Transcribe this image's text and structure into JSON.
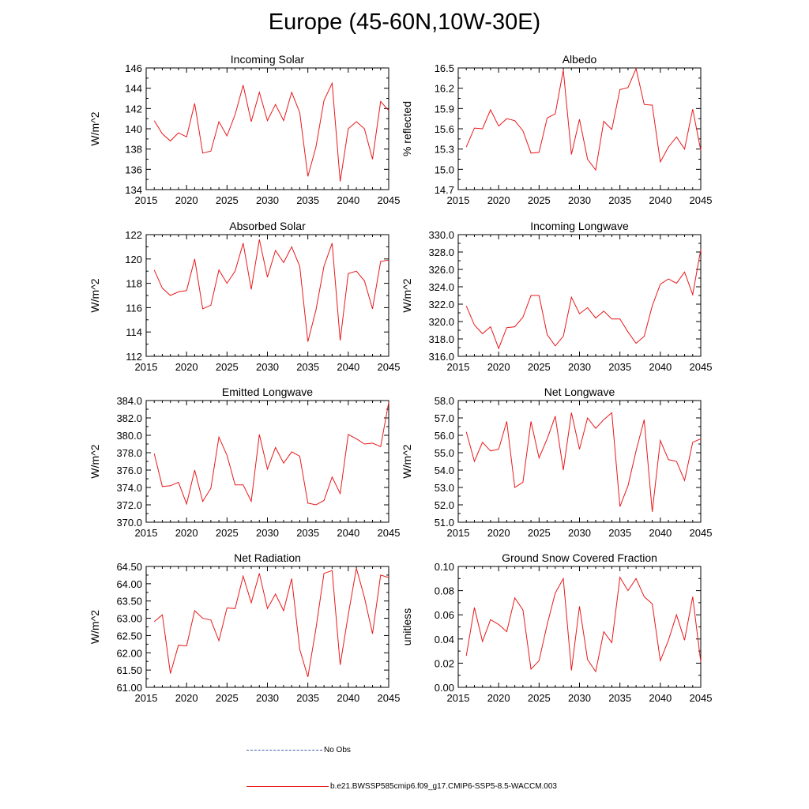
{
  "title": "Europe (45-60N,10W-30E)",
  "colors": {
    "model_line": "#e8191b",
    "obs_line": "#3d5fa8",
    "axis": "#000000"
  },
  "legend": {
    "obs_label": "No Obs",
    "model_label": "b.e21.BWSSP585cmip6.f09_g17.CMIP6-SSP5-8.5-WACCM.003"
  },
  "chart_data": [
    {
      "type": "line",
      "title": "Incoming Solar",
      "ylabel": "W/m^2",
      "xlim": [
        2015,
        2045
      ],
      "ylim": [
        134,
        146
      ],
      "xticks": [
        2015,
        2020,
        2025,
        2030,
        2035,
        2040,
        2045
      ],
      "yticks": [
        "134",
        "136",
        "138",
        "140",
        "142",
        "144",
        "146"
      ],
      "series": [
        {
          "name": "b.e21.BWSSP585cmip6.f09_g17.CMIP6-SSP5-8.5-WACCM.003",
          "x": [
            2016,
            2017,
            2018,
            2019,
            2020,
            2021,
            2022,
            2023,
            2024,
            2025,
            2026,
            2027,
            2028,
            2029,
            2030,
            2031,
            2032,
            2033,
            2034,
            2035,
            2036,
            2037,
            2038,
            2039,
            2040,
            2041,
            2042,
            2043,
            2044,
            2045
          ],
          "y": [
            140.8,
            139.5,
            138.8,
            139.6,
            139.2,
            142.5,
            137.6,
            137.8,
            140.7,
            139.3,
            141.4,
            144.3,
            140.7,
            143.6,
            140.8,
            142.4,
            140.8,
            143.6,
            141.6,
            135.3,
            138.2,
            142.8,
            144.5,
            134.8,
            140.0,
            140.7,
            140.0,
            137.0,
            142.7,
            141.8
          ]
        }
      ]
    },
    {
      "type": "line",
      "title": "Albedo",
      "ylabel": "% reflected",
      "xlim": [
        2015,
        2045
      ],
      "ylim": [
        14.7,
        16.5
      ],
      "xticks": [
        2015,
        2020,
        2025,
        2030,
        2035,
        2040,
        2045
      ],
      "yticks": [
        "14.7",
        "15.0",
        "15.3",
        "15.6",
        "15.9",
        "16.2",
        "16.5"
      ],
      "series": [
        {
          "name": "b.e21.BWSSP585cmip6.f09_g17.CMIP6-SSP5-8.5-WACCM.003",
          "x": [
            2016,
            2017,
            2018,
            2019,
            2020,
            2021,
            2022,
            2023,
            2024,
            2025,
            2026,
            2027,
            2028,
            2029,
            2030,
            2031,
            2032,
            2033,
            2034,
            2035,
            2036,
            2037,
            2038,
            2039,
            2040,
            2041,
            2042,
            2043,
            2044,
            2045
          ],
          "y": [
            15.33,
            15.61,
            15.6,
            15.88,
            15.64,
            15.75,
            15.72,
            15.57,
            15.24,
            15.25,
            15.76,
            15.82,
            16.47,
            15.22,
            15.74,
            15.15,
            14.99,
            15.71,
            15.59,
            16.18,
            16.21,
            16.49,
            15.96,
            15.95,
            15.11,
            15.33,
            15.48,
            15.3,
            15.89,
            15.28
          ]
        }
      ]
    },
    {
      "type": "line",
      "title": "Absorbed Solar",
      "ylabel": "W/m^2",
      "xlim": [
        2015,
        2045
      ],
      "ylim": [
        112,
        122
      ],
      "xticks": [
        2015,
        2020,
        2025,
        2030,
        2035,
        2040,
        2045
      ],
      "yticks": [
        "112",
        "114",
        "116",
        "118",
        "120",
        "122"
      ],
      "series": [
        {
          "name": "b.e21.BWSSP585cmip6.f09_g17.CMIP6-SSP5-8.5-WACCM.003",
          "x": [
            2016,
            2017,
            2018,
            2019,
            2020,
            2021,
            2022,
            2023,
            2024,
            2025,
            2026,
            2027,
            2028,
            2029,
            2030,
            2031,
            2032,
            2033,
            2034,
            2035,
            2036,
            2037,
            2038,
            2039,
            2040,
            2041,
            2042,
            2043,
            2044,
            2045
          ],
          "y": [
            119.1,
            117.6,
            117.0,
            117.3,
            117.4,
            120.0,
            115.9,
            116.2,
            119.1,
            118.0,
            119.0,
            121.3,
            117.5,
            121.6,
            118.5,
            120.7,
            119.7,
            121.0,
            119.4,
            113.2,
            115.8,
            119.4,
            121.3,
            113.3,
            118.8,
            119.0,
            118.2,
            115.9,
            119.8,
            119.9
          ]
        }
      ]
    },
    {
      "type": "line",
      "title": "Incoming Longwave",
      "ylabel": "W/m^2",
      "xlim": [
        2015,
        2045
      ],
      "ylim": [
        316.0,
        330.0
      ],
      "xticks": [
        2015,
        2020,
        2025,
        2030,
        2035,
        2040,
        2045
      ],
      "yticks": [
        "316.0",
        "318.0",
        "320.0",
        "322.0",
        "324.0",
        "326.0",
        "328.0",
        "330.0"
      ],
      "series": [
        {
          "name": "b.e21.BWSSP585cmip6.f09_g17.CMIP6-SSP5-8.5-WACCM.003",
          "x": [
            2016,
            2017,
            2018,
            2019,
            2020,
            2021,
            2022,
            2023,
            2024,
            2025,
            2026,
            2027,
            2028,
            2029,
            2030,
            2031,
            2032,
            2033,
            2034,
            2035,
            2036,
            2037,
            2038,
            2039,
            2040,
            2041,
            2042,
            2043,
            2044,
            2045
          ],
          "y": [
            321.8,
            319.6,
            318.6,
            319.4,
            316.9,
            319.3,
            319.4,
            320.5,
            323.0,
            323.0,
            318.5,
            317.2,
            318.3,
            322.8,
            320.9,
            321.6,
            320.4,
            321.2,
            320.3,
            320.3,
            318.8,
            317.5,
            318.3,
            321.8,
            324.3,
            324.9,
            324.4,
            325.7,
            323.1,
            328.3
          ]
        }
      ]
    },
    {
      "type": "line",
      "title": "Emitted Longwave",
      "ylabel": "W/m^2",
      "xlim": [
        2015,
        2045
      ],
      "ylim": [
        370.0,
        384.0
      ],
      "xticks": [
        2015,
        2020,
        2025,
        2030,
        2035,
        2040,
        2045
      ],
      "yticks": [
        "370.0",
        "372.0",
        "374.0",
        "376.0",
        "378.0",
        "380.0",
        "382.0",
        "384.0"
      ],
      "series": [
        {
          "name": "b.e21.BWSSP585cmip6.f09_g17.CMIP6-SSP5-8.5-WACCM.003",
          "x": [
            2016,
            2017,
            2018,
            2019,
            2020,
            2021,
            2022,
            2023,
            2024,
            2025,
            2026,
            2027,
            2028,
            2029,
            2030,
            2031,
            2032,
            2033,
            2034,
            2035,
            2036,
            2037,
            2038,
            2039,
            2040,
            2041,
            2042,
            2043,
            2044,
            2045
          ],
          "y": [
            377.9,
            374.1,
            374.2,
            374.6,
            372.1,
            376.0,
            372.4,
            373.9,
            379.8,
            377.7,
            374.3,
            374.3,
            372.4,
            380.1,
            376.1,
            378.6,
            376.8,
            378.1,
            377.6,
            372.2,
            372.0,
            372.5,
            375.2,
            373.3,
            380.1,
            379.6,
            379.0,
            379.1,
            378.7,
            383.8
          ]
        }
      ]
    },
    {
      "type": "line",
      "title": "Net Longwave",
      "ylabel": "W/m^2",
      "xlim": [
        2015,
        2045
      ],
      "ylim": [
        51.0,
        58.0
      ],
      "xticks": [
        2015,
        2020,
        2025,
        2030,
        2035,
        2040,
        2045
      ],
      "yticks": [
        "51.0",
        "52.0",
        "53.0",
        "54.0",
        "55.0",
        "56.0",
        "57.0",
        "58.0"
      ],
      "series": [
        {
          "name": "b.e21.BWSSP585cmip6.f09_g17.CMIP6-SSP5-8.5-WACCM.003",
          "x": [
            2016,
            2017,
            2018,
            2019,
            2020,
            2021,
            2022,
            2023,
            2024,
            2025,
            2026,
            2027,
            2028,
            2029,
            2030,
            2031,
            2032,
            2033,
            2034,
            2035,
            2036,
            2037,
            2038,
            2039,
            2040,
            2041,
            2042,
            2043,
            2044,
            2045
          ],
          "y": [
            56.2,
            54.5,
            55.6,
            55.1,
            55.2,
            56.8,
            53.0,
            53.3,
            56.8,
            54.7,
            55.8,
            57.1,
            54.0,
            57.3,
            55.2,
            57.0,
            56.4,
            56.9,
            57.3,
            51.9,
            53.1,
            55.1,
            56.9,
            51.6,
            55.7,
            54.6,
            54.5,
            53.4,
            55.6,
            55.8
          ]
        }
      ]
    },
    {
      "type": "line",
      "title": "Net Radiation",
      "ylabel": "W/m^2",
      "xlim": [
        2015,
        2045
      ],
      "ylim": [
        61.0,
        64.5
      ],
      "xticks": [
        2015,
        2020,
        2025,
        2030,
        2035,
        2040,
        2045
      ],
      "yticks": [
        "61.00",
        "61.50",
        "62.00",
        "62.50",
        "63.00",
        "63.50",
        "64.00",
        "64.50"
      ],
      "series": [
        {
          "name": "b.e21.BWSSP585cmip6.f09_g17.CMIP6-SSP5-8.5-WACCM.003",
          "x": [
            2016,
            2017,
            2018,
            2019,
            2020,
            2021,
            2022,
            2023,
            2024,
            2025,
            2026,
            2027,
            2028,
            2029,
            2030,
            2031,
            2032,
            2033,
            2034,
            2035,
            2036,
            2037,
            2038,
            2039,
            2040,
            2041,
            2042,
            2043,
            2044,
            2045
          ],
          "y": [
            62.9,
            63.1,
            61.4,
            62.22,
            62.2,
            63.22,
            63.0,
            62.95,
            62.35,
            63.3,
            63.28,
            64.22,
            63.45,
            64.3,
            63.28,
            63.7,
            63.22,
            64.15,
            62.1,
            61.3,
            62.7,
            64.3,
            64.38,
            61.65,
            63.1,
            64.45,
            63.6,
            62.55,
            64.25,
            64.18
          ]
        }
      ]
    },
    {
      "type": "line",
      "title": "Ground Snow Covered Fraction",
      "ylabel": "unitless",
      "xlim": [
        2015,
        2045
      ],
      "ylim": [
        0.0,
        0.1
      ],
      "xticks": [
        2015,
        2020,
        2025,
        2030,
        2035,
        2040,
        2045
      ],
      "yticks": [
        "0.00",
        "0.02",
        "0.04",
        "0.06",
        "0.08",
        "0.10"
      ],
      "series": [
        {
          "name": "b.e21.BWSSP585cmip6.f09_g17.CMIP6-SSP5-8.5-WACCM.003",
          "x": [
            2016,
            2017,
            2018,
            2019,
            2020,
            2021,
            2022,
            2023,
            2024,
            2025,
            2026,
            2027,
            2028,
            2029,
            2030,
            2031,
            2032,
            2033,
            2034,
            2035,
            2036,
            2037,
            2038,
            2039,
            2040,
            2041,
            2042,
            2043,
            2044,
            2045
          ],
          "y": [
            0.026,
            0.066,
            0.038,
            0.056,
            0.052,
            0.046,
            0.074,
            0.064,
            0.015,
            0.022,
            0.052,
            0.078,
            0.09,
            0.014,
            0.067,
            0.023,
            0.013,
            0.046,
            0.037,
            0.091,
            0.08,
            0.09,
            0.075,
            0.069,
            0.022,
            0.039,
            0.06,
            0.039,
            0.075,
            0.021
          ]
        }
      ]
    }
  ]
}
